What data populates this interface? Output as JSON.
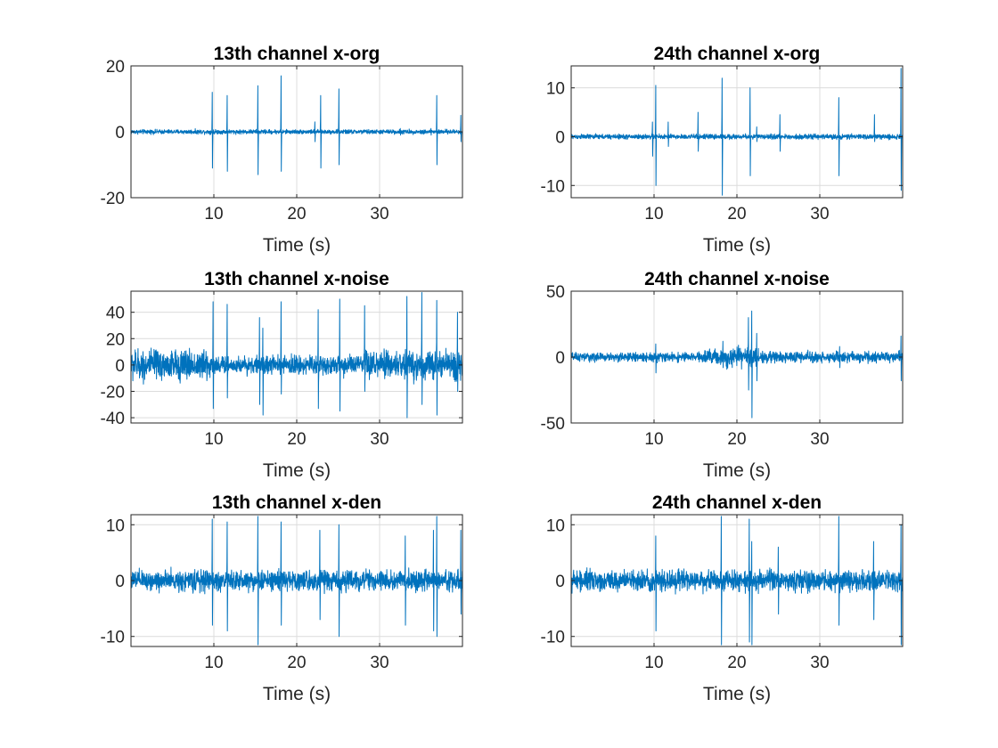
{
  "accent_color": "#0072bd",
  "chart_data": [
    {
      "type": "line",
      "title": "13th channel x-org",
      "xlabel": "Time (s)",
      "ylabel": "",
      "xlim": [
        0,
        40
      ],
      "ylim": [
        -20,
        20
      ],
      "xticks": [
        10,
        20,
        30
      ],
      "yticks": [
        -20,
        0,
        20
      ],
      "grid": true,
      "series": [
        {
          "color": "#0072bd",
          "baseline_noise": 0.8,
          "spikes": [
            [
              9.8,
              12,
              -11
            ],
            [
              11.6,
              11,
              -12
            ],
            [
              15.3,
              14,
              -13
            ],
            [
              18.1,
              17,
              -12
            ],
            [
              22.2,
              3,
              -3
            ],
            [
              22.9,
              11,
              -11
            ],
            [
              25.1,
              13,
              -10
            ],
            [
              32.5,
              1,
              -1
            ],
            [
              36.2,
              1,
              -1
            ],
            [
              36.9,
              11,
              -10
            ],
            [
              39.8,
              5,
              -3
            ]
          ],
          "bursts": []
        }
      ]
    },
    {
      "type": "line",
      "title": "24th channel x-org",
      "xlabel": "Time (s)",
      "ylabel": "",
      "xlim": [
        0,
        40
      ],
      "ylim": [
        -12.5,
        14.5
      ],
      "xticks": [
        10,
        20,
        30
      ],
      "yticks": [
        -10,
        0,
        10
      ],
      "grid": true,
      "series": [
        {
          "color": "#0072bd",
          "baseline_noise": 0.6,
          "spikes": [
            [
              9.8,
              3,
              -4
            ],
            [
              10.2,
              10.5,
              -10
            ],
            [
              11.7,
              3,
              -2
            ],
            [
              15.3,
              5,
              -3
            ],
            [
              18.2,
              12,
              -12
            ],
            [
              21.6,
              10,
              -8
            ],
            [
              22.4,
              2,
              -1
            ],
            [
              25.2,
              4.5,
              -3
            ],
            [
              32.3,
              8,
              -8
            ],
            [
              36.6,
              4.5,
              -1
            ],
            [
              39.8,
              14,
              -11
            ]
          ],
          "bursts": []
        }
      ]
    },
    {
      "type": "line",
      "title": "13th channel x-noise",
      "xlabel": "Time (s)",
      "ylabel": "",
      "xlim": [
        0,
        40
      ],
      "ylim": [
        -44,
        56
      ],
      "xticks": [
        10,
        20,
        30
      ],
      "yticks": [
        -40,
        -20,
        0,
        20,
        40
      ],
      "grid": true,
      "series": [
        {
          "color": "#0072bd",
          "baseline_noise": 5,
          "spikes": [
            [
              9.9,
              48,
              -33
            ],
            [
              11.6,
              46,
              -25
            ],
            [
              15.5,
              36,
              -30
            ],
            [
              15.9,
              28,
              -38
            ],
            [
              18.1,
              48,
              -22
            ],
            [
              22.6,
              42,
              -33
            ],
            [
              25.2,
              50,
              -35
            ],
            [
              28.2,
              45,
              -20
            ],
            [
              33.3,
              52,
              -40
            ],
            [
              35.1,
              55,
              -30
            ],
            [
              36.9,
              49,
              -38
            ],
            [
              39.4,
              40,
              -20
            ]
          ],
          "bursts": [
            [
              0,
              10,
              14
            ],
            [
              10,
              19,
              8
            ],
            [
              19,
              28,
              9
            ],
            [
              28,
              40,
              13
            ]
          ]
        }
      ]
    },
    {
      "type": "line",
      "title": "24th channel x-noise",
      "xlabel": "Time (s)",
      "ylabel": "",
      "xlim": [
        0,
        40
      ],
      "ylim": [
        -50,
        50
      ],
      "xticks": [
        10,
        20,
        30
      ],
      "yticks": [
        -50,
        0,
        50
      ],
      "grid": true,
      "series": [
        {
          "color": "#0072bd",
          "baseline_noise": 3,
          "spikes": [
            [
              10.2,
              10,
              -12
            ],
            [
              18.3,
              12,
              -8
            ],
            [
              21.4,
              30,
              -25
            ],
            [
              21.8,
              35,
              -46
            ],
            [
              22.4,
              18,
              -18
            ],
            [
              32.4,
              8,
              -8
            ],
            [
              39.8,
              16,
              -18
            ]
          ],
          "bursts": [
            [
              0,
              16,
              4
            ],
            [
              16,
              23,
              8
            ],
            [
              23,
              40,
              5
            ]
          ]
        }
      ]
    },
    {
      "type": "line",
      "title": "13th channel x-den",
      "xlabel": "Time (s)",
      "ylabel": "",
      "xlim": [
        0,
        40
      ],
      "ylim": [
        -11.8,
        11.8
      ],
      "xticks": [
        10,
        20,
        30
      ],
      "yticks": [
        -10,
        0,
        10
      ],
      "grid": true,
      "series": [
        {
          "color": "#0072bd",
          "baseline_noise": 1.8,
          "spikes": [
            [
              9.8,
              11,
              -8
            ],
            [
              11.6,
              10.5,
              -9
            ],
            [
              15.3,
              11.5,
              -11.5
            ],
            [
              18.1,
              10.5,
              -8
            ],
            [
              22.8,
              9,
              -7
            ],
            [
              25.1,
              10,
              -10
            ],
            [
              33.1,
              8,
              -8
            ],
            [
              36.5,
              9,
              -9
            ],
            [
              36.9,
              11.5,
              -10
            ],
            [
              39.8,
              9,
              -6
            ]
          ],
          "bursts": [
            [
              0,
              40,
              2.2
            ]
          ]
        }
      ]
    },
    {
      "type": "line",
      "title": "24th channel x-den",
      "xlabel": "Time (s)",
      "ylabel": "",
      "xlim": [
        0,
        40
      ],
      "ylim": [
        -11.8,
        11.8
      ],
      "xticks": [
        10,
        20,
        30
      ],
      "yticks": [
        -10,
        0,
        10
      ],
      "grid": true,
      "series": [
        {
          "color": "#0072bd",
          "baseline_noise": 1.8,
          "spikes": [
            [
              10.2,
              8,
              -9
            ],
            [
              18.1,
              11.5,
              -11.5
            ],
            [
              21.5,
              11,
              -11
            ],
            [
              21.8,
              7,
              -11.5
            ],
            [
              25.0,
              6,
              -6
            ],
            [
              32.3,
              11.5,
              -8
            ],
            [
              36.5,
              7,
              -7
            ],
            [
              39.8,
              10,
              -11.5
            ]
          ],
          "bursts": [
            [
              0,
              40,
              2.2
            ]
          ]
        }
      ]
    }
  ]
}
